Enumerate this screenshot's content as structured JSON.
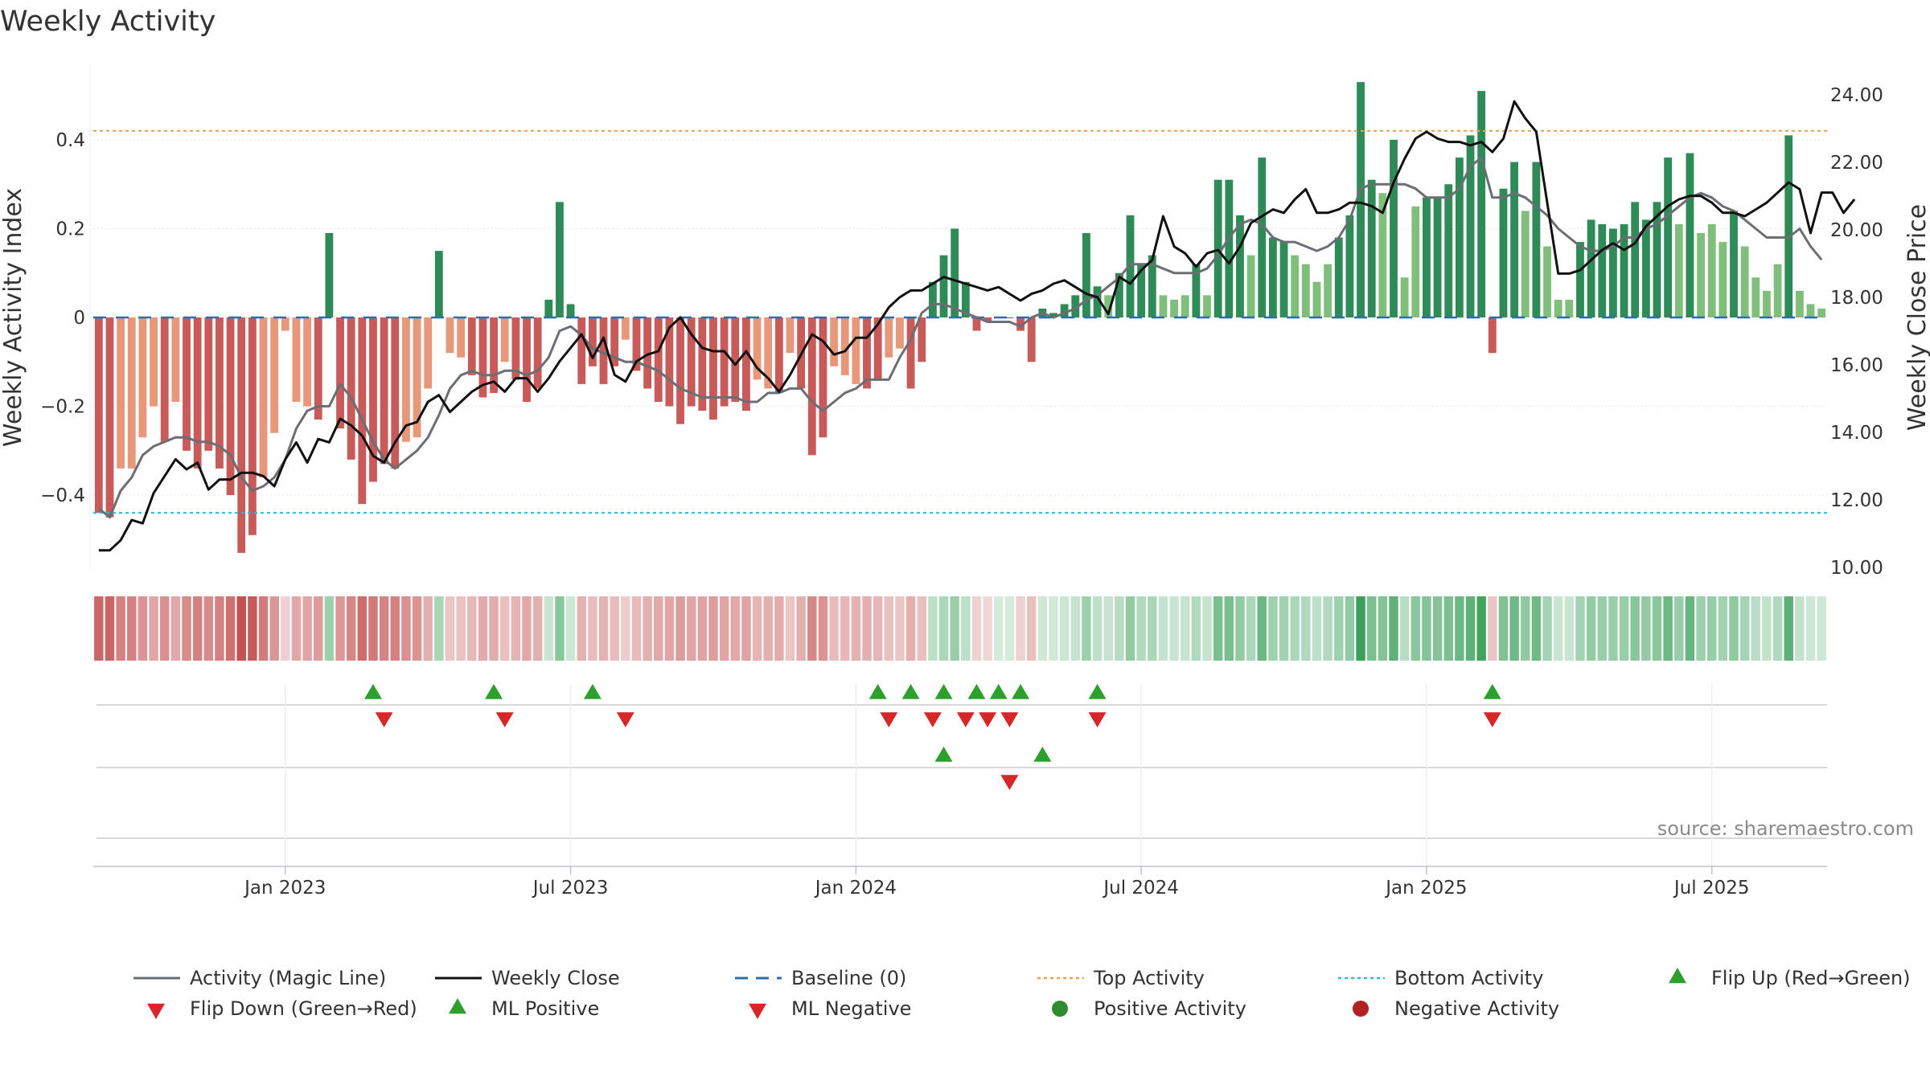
{
  "chart_data": {
    "type": "bar+line",
    "title": "Weekly Activity",
    "ylabel_left": "Weekly Activity Index",
    "ylabel_right": "Weekly Close Price",
    "source": "source: sharemaestro.com",
    "ylim_left": [
      -0.57,
      0.57
    ],
    "ylim_right": [
      9.9,
      24.9
    ],
    "yticks_left": [
      -0.4,
      -0.2,
      0,
      0.2,
      0.4
    ],
    "ytick_labels_left": [
      "−0.4",
      "−0.2",
      "0",
      "0.2",
      "0.4"
    ],
    "yticks_right": [
      10,
      12,
      14,
      16,
      18,
      20,
      22,
      24
    ],
    "ytick_labels_right": [
      "10.00",
      "12.00",
      "14.00",
      "16.00",
      "18.00",
      "20.00",
      "22.00",
      "24.00"
    ],
    "top_activity": 0.42,
    "bottom_activity": -0.44,
    "baseline": 0,
    "x_tick_weeks": [
      17,
      43,
      69,
      95,
      121,
      147
    ],
    "x_tick_labels": [
      "Jan 2023",
      "Jul 2023",
      "Jan 2024",
      "Jul 2024",
      "Jan 2025",
      "Jul 2025"
    ],
    "activity": [
      -0.44,
      -0.45,
      -0.34,
      -0.34,
      -0.27,
      -0.2,
      -0.28,
      -0.19,
      -0.3,
      -0.34,
      -0.3,
      -0.34,
      -0.4,
      -0.53,
      -0.49,
      -0.36,
      -0.26,
      -0.03,
      -0.19,
      -0.2,
      -0.23,
      0.19,
      -0.25,
      -0.32,
      -0.42,
      -0.37,
      -0.33,
      -0.34,
      -0.28,
      -0.27,
      -0.16,
      0.15,
      -0.08,
      -0.09,
      -0.13,
      -0.18,
      -0.17,
      -0.1,
      -0.14,
      -0.19,
      -0.16,
      0.04,
      0.26,
      0.03,
      -0.15,
      -0.11,
      -0.15,
      -0.11,
      -0.05,
      -0.12,
      -0.16,
      -0.19,
      -0.2,
      -0.24,
      -0.2,
      -0.21,
      -0.23,
      -0.2,
      -0.19,
      -0.21,
      -0.14,
      -0.16,
      -0.17,
      -0.08,
      -0.16,
      -0.31,
      -0.27,
      -0.11,
      -0.13,
      -0.15,
      -0.16,
      -0.14,
      -0.09,
      -0.07,
      -0.16,
      -0.1,
      0.08,
      0.14,
      0.2,
      0.08,
      -0.03,
      -0.01,
      0.0,
      0.0,
      -0.03,
      -0.1,
      0.02,
      0.01,
      0.03,
      0.05,
      0.19,
      0.07,
      0.05,
      0.1,
      0.23,
      0.12,
      0.14,
      0.05,
      0.04,
      0.05,
      0.12,
      0.05,
      0.31,
      0.31,
      0.23,
      0.14,
      0.36,
      0.18,
      0.17,
      0.14,
      0.12,
      0.08,
      0.12,
      0.18,
      0.23,
      0.53,
      0.31,
      0.28,
      0.4,
      0.09,
      0.25,
      0.27,
      0.27,
      0.3,
      0.36,
      0.41,
      0.51,
      -0.08,
      0.29,
      0.35,
      0.24,
      0.35,
      0.16,
      0.04,
      0.04,
      0.17,
      0.22,
      0.21,
      0.2,
      0.21,
      0.26,
      0.22,
      0.26,
      0.36,
      0.21,
      0.37,
      0.19,
      0.21,
      0.17,
      0.24,
      0.16,
      0.09,
      0.06,
      0.12,
      0.41,
      0.06,
      0.03,
      0.02
    ],
    "magic_line": [
      -0.43,
      -0.45,
      -0.39,
      -0.36,
      -0.31,
      -0.29,
      -0.28,
      -0.27,
      -0.27,
      -0.28,
      -0.28,
      -0.29,
      -0.31,
      -0.36,
      -0.39,
      -0.38,
      -0.36,
      -0.32,
      -0.25,
      -0.21,
      -0.2,
      -0.2,
      -0.15,
      -0.18,
      -0.23,
      -0.28,
      -0.32,
      -0.34,
      -0.32,
      -0.3,
      -0.27,
      -0.22,
      -0.16,
      -0.13,
      -0.12,
      -0.13,
      -0.13,
      -0.12,
      -0.12,
      -0.13,
      -0.12,
      -0.09,
      -0.03,
      -0.02,
      -0.04,
      -0.07,
      -0.08,
      -0.09,
      -0.1,
      -0.1,
      -0.11,
      -0.12,
      -0.14,
      -0.16,
      -0.17,
      -0.18,
      -0.18,
      -0.18,
      -0.18,
      -0.19,
      -0.19,
      -0.17,
      -0.17,
      -0.16,
      -0.16,
      -0.19,
      -0.21,
      -0.19,
      -0.17,
      -0.16,
      -0.14,
      -0.14,
      -0.14,
      -0.09,
      -0.05,
      0.01,
      0.03,
      0.03,
      0.02,
      0.01,
      0.0,
      -0.01,
      -0.01,
      -0.01,
      -0.02,
      0.0,
      0.01,
      0.0,
      0.01,
      0.02,
      0.04,
      0.05,
      0.07,
      0.09,
      0.12,
      0.12,
      0.12,
      0.11,
      0.1,
      0.1,
      0.1,
      0.11,
      0.14,
      0.18,
      0.21,
      0.22,
      0.21,
      0.18,
      0.17,
      0.17,
      0.16,
      0.15,
      0.16,
      0.18,
      0.22,
      0.29,
      0.3,
      0.3,
      0.3,
      0.3,
      0.29,
      0.27,
      0.27,
      0.27,
      0.29,
      0.34,
      0.36,
      0.27,
      0.27,
      0.28,
      0.27,
      0.25,
      0.23,
      0.2,
      0.18,
      0.16,
      0.15,
      0.15,
      0.16,
      0.18,
      0.18,
      0.2,
      0.21,
      0.23,
      0.25,
      0.27,
      0.28,
      0.27,
      0.25,
      0.24,
      0.22,
      0.2,
      0.18,
      0.18,
      0.18,
      0.2,
      0.16,
      0.13
    ],
    "weekly_close": [
      10.5,
      10.5,
      10.8,
      11.4,
      11.3,
      12.2,
      12.7,
      13.2,
      12.9,
      13.1,
      12.3,
      12.6,
      12.6,
      12.8,
      12.8,
      12.7,
      12.4,
      13.2,
      13.7,
      13.1,
      13.8,
      13.7,
      14.4,
      14.2,
      13.9,
      13.3,
      13.1,
      13.7,
      14.2,
      14.3,
      14.9,
      15.1,
      14.6,
      14.9,
      15.2,
      15.4,
      15.5,
      15.2,
      15.6,
      15.6,
      15.2,
      15.6,
      16.1,
      16.5,
      16.9,
      16.2,
      16.8,
      15.7,
      15.5,
      16.1,
      16.3,
      16.4,
      17.1,
      17.4,
      16.9,
      16.5,
      16.4,
      16.4,
      16.0,
      16.4,
      15.9,
      15.6,
      15.2,
      15.7,
      16.3,
      16.9,
      16.7,
      16.3,
      16.4,
      16.8,
      16.8,
      17.2,
      17.7,
      18.0,
      18.2,
      18.2,
      18.4,
      18.6,
      18.5,
      18.4,
      18.3,
      18.2,
      18.3,
      18.1,
      17.9,
      18.1,
      18.2,
      18.4,
      18.5,
      18.3,
      18.1,
      18.0,
      17.5,
      18.6,
      18.4,
      18.8,
      19.1,
      20.4,
      19.5,
      19.3,
      18.9,
      19.3,
      19.4,
      19.0,
      19.5,
      20.2,
      20.4,
      20.6,
      20.5,
      20.9,
      21.2,
      20.5,
      20.5,
      20.6,
      20.8,
      20.8,
      20.7,
      20.5,
      21.4,
      22.1,
      22.7,
      22.9,
      22.7,
      22.6,
      22.6,
      22.5,
      22.6,
      22.3,
      22.7,
      23.8,
      23.3,
      22.9,
      20.8,
      18.7,
      18.7,
      18.8,
      19.1,
      19.4,
      19.6,
      19.4,
      19.6,
      20.1,
      20.4,
      20.7,
      20.9,
      21.0,
      21.0,
      20.8,
      20.5,
      20.5,
      20.4,
      20.6,
      20.8,
      21.1,
      21.4,
      21.2,
      19.9,
      21.1,
      21.1,
      20.5,
      20.9
    ],
    "flip_up_weeks": [
      25,
      36,
      45,
      71,
      74,
      77,
      80,
      82,
      84,
      91,
      127
    ],
    "flip_down_weeks": [
      26,
      37,
      48,
      72,
      76,
      79,
      81,
      83,
      91,
      127
    ],
    "ml_positive_weeks": [
      77,
      86
    ],
    "ml_negative_weeks": [
      83
    ],
    "colors": {
      "dark_green": "#2e8b57",
      "light_green": "#7fbf7b",
      "dark_red": "#c85a5a",
      "light_red": "#e8987a",
      "magic_line": "#6b6e73",
      "weekly_close": "#111111",
      "baseline": "#2c6ea8",
      "top_activity": "#f0a050",
      "bottom_activity": "#20c0d8",
      "marker_green": "#2ca02c",
      "marker_red": "#d62728",
      "positive_activity": "#2e8b2e",
      "negative_activity": "#b22222",
      "grid": "#e3e6ea",
      "strip_gray": "#d5d9de"
    },
    "legend": [
      {
        "label": "Activity (Magic Line)",
        "icon": "line-solid",
        "color": "#6b6e73"
      },
      {
        "label": "Weekly Close",
        "icon": "line-solid",
        "color": "#111111"
      },
      {
        "label": "Baseline (0)",
        "icon": "line-dashed",
        "color": "#2c6ea8"
      },
      {
        "label": "Top Activity",
        "icon": "line-dotted",
        "color": "#f0a050"
      },
      {
        "label": "Bottom Activity",
        "icon": "line-dotted",
        "color": "#20c0d8"
      },
      {
        "label": "Flip Up (Red→Green)",
        "icon": "triangle-up",
        "color": "#2ca02c"
      },
      {
        "label": "Flip Down (Green→Red)",
        "icon": "triangle-down",
        "color": "#d62728"
      },
      {
        "label": "ML Positive",
        "icon": "triangle-up",
        "color": "#2ca02c"
      },
      {
        "label": "ML Negative",
        "icon": "triangle-down",
        "color": "#d62728"
      },
      {
        "label": "Positive Activity",
        "icon": "circle",
        "color": "#2e8b2e"
      },
      {
        "label": "Negative Activity",
        "icon": "circle",
        "color": "#b22222"
      }
    ]
  }
}
